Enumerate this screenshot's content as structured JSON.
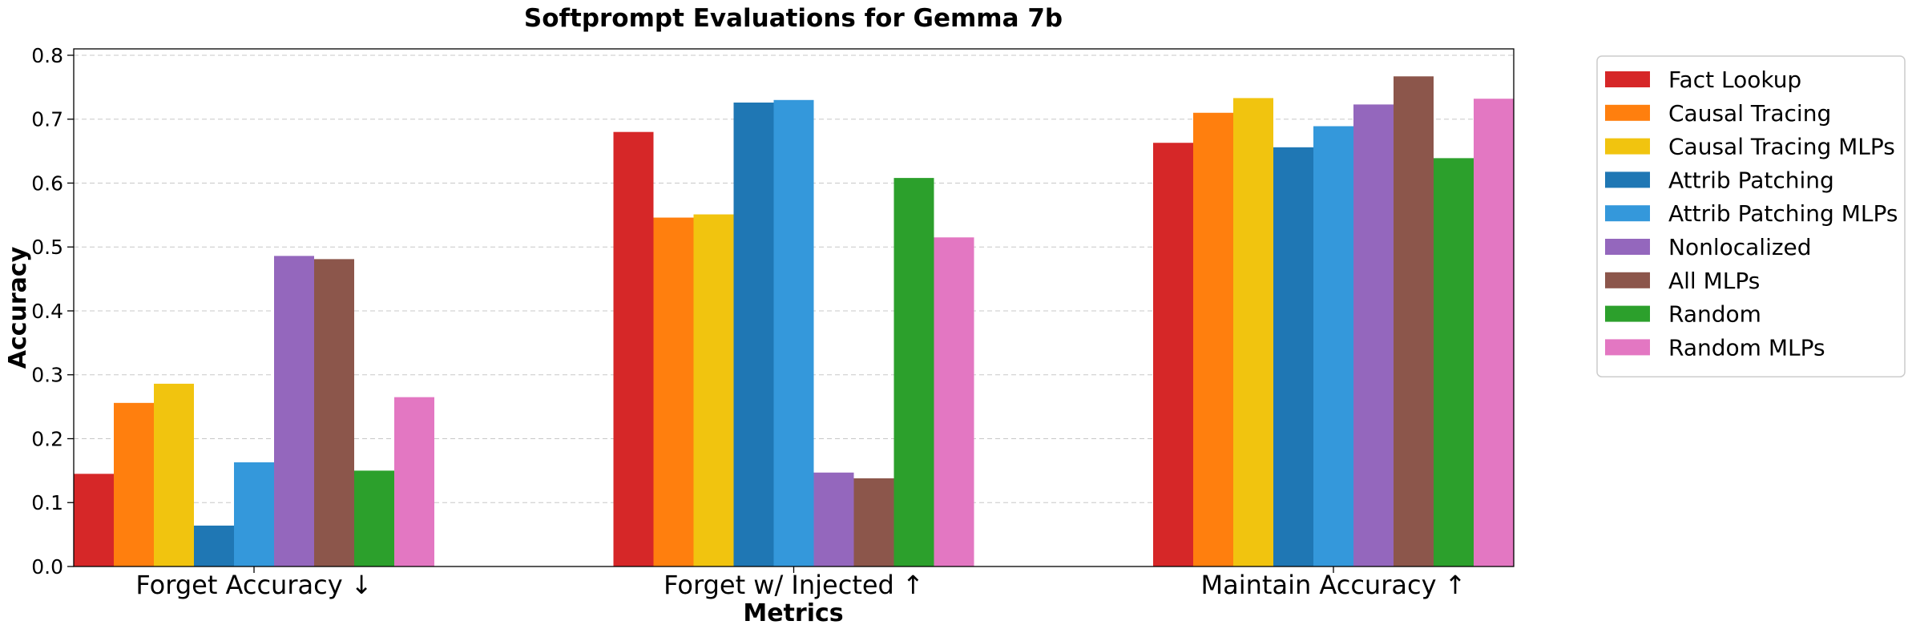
{
  "chart_data": {
    "type": "bar",
    "title": "Softprompt Evaluations for Gemma 7b",
    "xlabel": "Metrics",
    "ylabel": "Accuracy",
    "ylim": [
      0,
      0.81
    ],
    "yticks": [
      "0.0",
      "0.1",
      "0.2",
      "0.3",
      "0.4",
      "0.5",
      "0.6",
      "0.7",
      "0.8"
    ],
    "grid": "horizontal-dashed",
    "legend_position": "outside-right",
    "categories": [
      "Forget Accuracy ↓",
      "Forget w/ Injected ↑",
      "Maintain Accuracy ↑"
    ],
    "series": [
      {
        "name": "Fact Lookup",
        "color": "#d62728",
        "values": [
          0.145,
          0.68,
          0.663
        ]
      },
      {
        "name": "Causal Tracing",
        "color": "#ff7f0e",
        "values": [
          0.256,
          0.546,
          0.71
        ]
      },
      {
        "name": "Causal Tracing MLPs",
        "color": "#f1c40f",
        "values": [
          0.286,
          0.551,
          0.733
        ]
      },
      {
        "name": "Attrib Patching",
        "color": "#1f77b4",
        "values": [
          0.064,
          0.726,
          0.656
        ]
      },
      {
        "name": "Attrib Patching MLPs",
        "color": "#3498db",
        "values": [
          0.163,
          0.73,
          0.689
        ]
      },
      {
        "name": "Nonlocalized",
        "color": "#9467bd",
        "values": [
          0.486,
          0.147,
          0.723
        ]
      },
      {
        "name": "All MLPs",
        "color": "#8c564b",
        "values": [
          0.481,
          0.138,
          0.767
        ]
      },
      {
        "name": "Random",
        "color": "#2ca02c",
        "values": [
          0.15,
          0.608,
          0.639
        ]
      },
      {
        "name": "Random MLPs",
        "color": "#e377c2",
        "values": [
          0.265,
          0.515,
          0.732
        ]
      }
    ]
  }
}
